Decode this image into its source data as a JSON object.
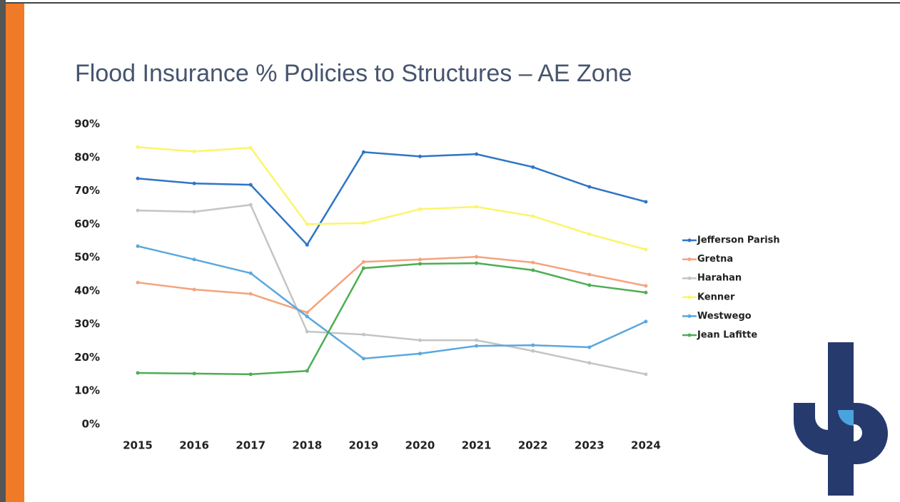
{
  "chart_data": {
    "type": "line",
    "title": "Flood Insurance % Policies to Structures – AE Zone",
    "categories": [
      "2015",
      "2016",
      "2017",
      "2018",
      "2019",
      "2020",
      "2021",
      "2022",
      "2023",
      "2024"
    ],
    "series": [
      {
        "name": "Jefferson Parish",
        "color": "#2e75c6",
        "values": [
          73.7,
          72.2,
          71.8,
          53.8,
          81.6,
          80.3,
          81,
          77.1,
          71.2,
          66.7
        ]
      },
      {
        "name": "Gretna",
        "color": "#f4a37c",
        "values": [
          42.5,
          40.4,
          39.1,
          33.5,
          48.7,
          49.4,
          50.2,
          48.5,
          44.9,
          41.5
        ]
      },
      {
        "name": "Harahan",
        "color": "#c4c4c4",
        "values": [
          64.1,
          63.7,
          65.8,
          27.8,
          26.9,
          25.2,
          25.2,
          22,
          18.4,
          15
        ]
      },
      {
        "name": "Kenner",
        "color": "#fbf56a",
        "values": [
          83.1,
          81.8,
          82.9,
          60,
          60.3,
          64.5,
          65.2,
          62.4,
          57,
          52.4
        ]
      },
      {
        "name": "Westwego",
        "color": "#5aa7de",
        "values": [
          53.4,
          49.4,
          45.3,
          32.3,
          19.7,
          21.2,
          23.5,
          23.7,
          23.1,
          30.8
        ]
      },
      {
        "name": "Jean Lafitte",
        "color": "#4cae52",
        "values": [
          15.4,
          15.2,
          15,
          16,
          46.8,
          48.1,
          48.3,
          46.2,
          41.7,
          39.5
        ]
      }
    ],
    "ylim": [
      0,
      90
    ],
    "yticks": [
      {
        "value": 0,
        "label": "0%"
      },
      {
        "value": 10,
        "label": "10%"
      },
      {
        "value": 20,
        "label": "20%"
      },
      {
        "value": 30,
        "label": "30%"
      },
      {
        "value": 40,
        "label": "40%"
      },
      {
        "value": 50,
        "label": "50%"
      },
      {
        "value": 60,
        "label": "60%"
      },
      {
        "value": 70,
        "label": "70%"
      },
      {
        "value": 80,
        "label": "80%"
      },
      {
        "value": 90,
        "label": "90%"
      }
    ],
    "grid": false,
    "legend": "right"
  }
}
